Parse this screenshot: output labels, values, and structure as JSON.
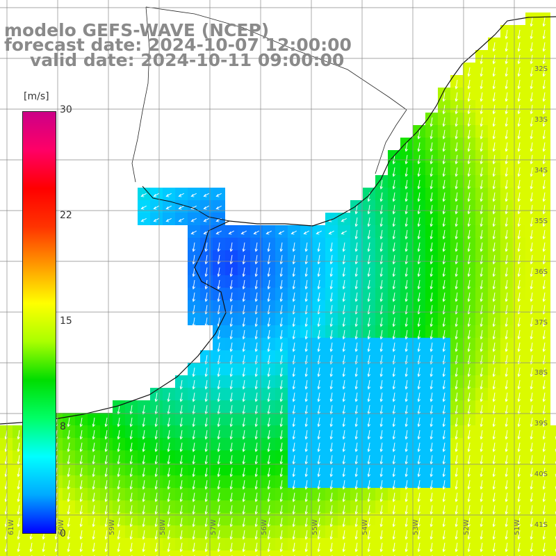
{
  "title": {
    "line1": "modelo GEFS-WAVE (NCEP)",
    "line2": "forecast date: 2024-10-07 12:00:00",
    "line3": "valid date: 2024-10-11 09:00:00"
  },
  "colorbar": {
    "unit": "[m/s]",
    "ticks": [
      "30",
      "22",
      "15",
      "8",
      "0"
    ],
    "colors": [
      "#0000ff",
      "#00aaff",
      "#00ffff",
      "#00ff66",
      "#00dd00",
      "#aaff00",
      "#ffff00",
      "#ff9900",
      "#ff3300",
      "#ff0000",
      "#ff0066",
      "#cc0088"
    ]
  },
  "lat_labels": [
    "32S",
    "33S",
    "34S",
    "35S",
    "36S",
    "37S",
    "38S",
    "39S",
    "40S",
    "41S"
  ],
  "lon_labels": [
    "61W",
    "60W",
    "59W",
    "58W",
    "57W",
    "56W",
    "55W",
    "54W",
    "53W",
    "52W",
    "51W"
  ],
  "map": {
    "ocean_color_low": "#1040ff",
    "ocean_color_mid": "#00d8ff",
    "ocean_color_high": "#00e000",
    "land_color": "#ffffff",
    "grid_color": "#888888"
  }
}
